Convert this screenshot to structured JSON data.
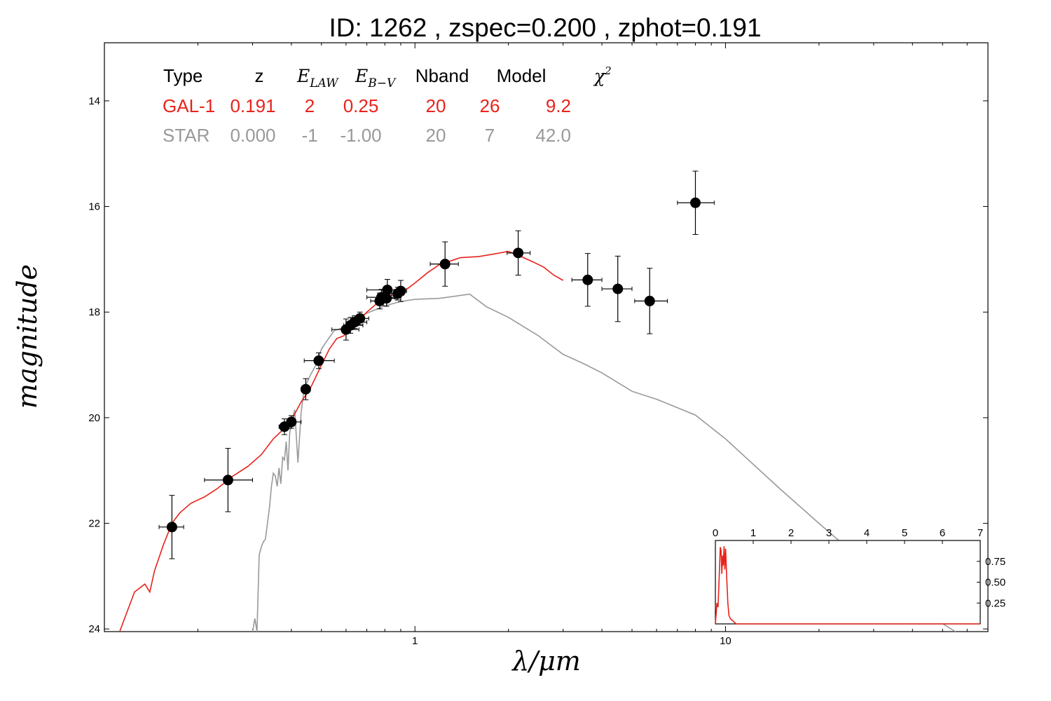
{
  "title": "ID:  1262  , zspec=0.200 , zphot=0.191",
  "xlabel": "λ/μm",
  "ylabel": "magnitude",
  "colors": {
    "gal": "#e8231b",
    "star": "#999999",
    "points": "#000000",
    "axes": "#000000"
  },
  "table": {
    "headers": [
      {
        "text": "Type",
        "math": false
      },
      {
        "text": "z",
        "math": false
      },
      {
        "text": "E",
        "sub": "LAW",
        "math": true
      },
      {
        "text": "E",
        "sub": "B−V",
        "math": true
      },
      {
        "text": "Nband",
        "math": false
      },
      {
        "text": "Model",
        "math": false
      },
      {
        "text": "χ",
        "sup": "2",
        "math": true
      }
    ],
    "rows": [
      {
        "type": "GAL-1",
        "z": "0.191",
        "elaw": "2",
        "ebv": "0.25",
        "nband": "20",
        "model": "26",
        "chi2": "9.2"
      },
      {
        "type": "STAR",
        "z": "0.000",
        "elaw": "-1",
        "ebv": "-1.00",
        "nband": "20",
        "model": "7",
        "chi2": "42.0"
      }
    ]
  },
  "chart_data": {
    "type": "scatter",
    "title": "ID:  1262  , zspec=0.200 , zphot=0.191",
    "xlabel": "λ/μm",
    "ylabel": "magnitude",
    "xscale": "log",
    "xlim": [
      0.1,
      70
    ],
    "ylim": [
      24.05,
      12.9
    ],
    "y_inverted": true,
    "xticks": [
      1,
      10
    ],
    "yticks": [
      14,
      16,
      18,
      20,
      22,
      24
    ],
    "grid": false,
    "series": [
      {
        "role": "observed photometry",
        "style": "points",
        "points": [
          {
            "x": 0.165,
            "y": 22.07,
            "xerr": [
              0.15,
              0.18
            ],
            "yerr": 0.6
          },
          {
            "x": 0.25,
            "y": 21.18,
            "xerr": [
              0.21,
              0.3
            ],
            "yerr": 0.6
          },
          {
            "x": 0.38,
            "y": 20.17,
            "xerr": [
              0.365,
              0.4
            ],
            "yerr": 0.15
          },
          {
            "x": 0.4,
            "y": 20.08,
            "xerr": [
              0.38,
              0.43
            ],
            "yerr": 0.12
          },
          {
            "x": 0.445,
            "y": 19.46,
            "xerr": [
              0.43,
              0.46
            ],
            "yerr": 0.2
          },
          {
            "x": 0.49,
            "y": 18.92,
            "xerr": [
              0.44,
              0.55
            ],
            "yerr": 0.15
          },
          {
            "x": 0.6,
            "y": 18.33,
            "xerr": [
              0.54,
              0.66
            ],
            "yerr": 0.2
          },
          {
            "x": 0.62,
            "y": 18.25,
            "xerr": [
              0.59,
              0.68
            ],
            "yerr": 0.15
          },
          {
            "x": 0.64,
            "y": 18.19,
            "xerr": [
              0.6,
              0.7
            ],
            "yerr": 0.12
          },
          {
            "x": 0.665,
            "y": 18.12,
            "xerr": [
              0.63,
              0.71
            ],
            "yerr": 0.12
          },
          {
            "x": 0.77,
            "y": 17.79,
            "xerr": [
              0.72,
              0.8
            ],
            "yerr": 0.15
          },
          {
            "x": 0.78,
            "y": 17.72,
            "xerr": [
              0.7,
              0.86
            ],
            "yerr": 0.15
          },
          {
            "x": 0.81,
            "y": 17.74,
            "xerr": [
              0.76,
              0.87
            ],
            "yerr": 0.15
          },
          {
            "x": 0.815,
            "y": 17.58,
            "xerr": [
              0.7,
              0.9
            ],
            "yerr": 0.2
          },
          {
            "x": 0.88,
            "y": 17.65,
            "xerr": [
              0.84,
              0.92
            ],
            "yerr": 0.12
          },
          {
            "x": 0.9,
            "y": 17.6,
            "xerr": [
              0.86,
              0.94
            ],
            "yerr": 0.2
          },
          {
            "x": 1.25,
            "y": 17.09,
            "xerr": [
              1.12,
              1.38
            ],
            "yerr": 0.42
          },
          {
            "x": 2.15,
            "y": 16.88,
            "xerr": [
              1.98,
              2.35
            ],
            "yerr": 0.42
          },
          {
            "x": 3.6,
            "y": 17.39,
            "xerr": [
              3.2,
              4.0
            ],
            "yerr": 0.5
          },
          {
            "x": 4.5,
            "y": 17.56,
            "xerr": [
              4.0,
              5.0
            ],
            "yerr": 0.62
          },
          {
            "x": 5.7,
            "y": 17.79,
            "xerr": [
              5.1,
              6.5
            ],
            "yerr": 0.62
          },
          {
            "x": 8.0,
            "y": 15.93,
            "xerr": [
              7.0,
              9.2
            ],
            "yerr": 0.6
          }
        ]
      },
      {
        "role": "GAL-1 model",
        "style": "line",
        "x": [
          0.112,
          0.125,
          0.135,
          0.14,
          0.145,
          0.155,
          0.165,
          0.175,
          0.19,
          0.21,
          0.23,
          0.26,
          0.29,
          0.32,
          0.35,
          0.38,
          0.4,
          0.43,
          0.46,
          0.5,
          0.53,
          0.56,
          0.59,
          0.62,
          0.65,
          0.7,
          0.75,
          0.8,
          0.85,
          0.9,
          0.95,
          1.0,
          1.1,
          1.2,
          1.4,
          1.6,
          1.8,
          2.0,
          2.2,
          2.4,
          2.6,
          2.8,
          3.0
        ],
        "y": [
          24.05,
          23.3,
          23.15,
          23.3,
          22.9,
          22.4,
          22.0,
          21.8,
          21.62,
          21.5,
          21.35,
          21.1,
          20.92,
          20.7,
          20.4,
          20.2,
          20.05,
          19.7,
          19.45,
          19.0,
          18.7,
          18.5,
          18.45,
          18.3,
          18.2,
          18.0,
          17.85,
          17.73,
          17.68,
          17.6,
          17.55,
          17.45,
          17.25,
          17.1,
          16.97,
          16.95,
          16.9,
          16.85,
          16.95,
          17.05,
          17.15,
          17.3,
          17.4
        ]
      },
      {
        "role": "STAR model",
        "style": "line",
        "x": [
          0.3,
          0.305,
          0.31,
          0.315,
          0.32,
          0.325,
          0.33,
          0.34,
          0.345,
          0.35,
          0.355,
          0.36,
          0.365,
          0.37,
          0.375,
          0.38,
          0.385,
          0.39,
          0.395,
          0.4,
          0.41,
          0.42,
          0.43,
          0.44,
          0.46,
          0.48,
          0.5,
          0.52,
          0.55,
          0.6,
          0.65,
          0.7,
          0.8,
          0.9,
          1.0,
          1.2,
          1.5,
          1.7,
          2.0,
          2.5,
          3.0,
          3.5,
          4.0,
          5.0,
          6.0,
          8.0,
          10.0,
          15.0,
          20.0,
          30.0,
          40.0,
          55.0
        ],
        "y": [
          24.05,
          23.8,
          24.05,
          22.6,
          22.45,
          22.35,
          22.3,
          21.7,
          21.3,
          21.05,
          21.1,
          21.3,
          20.95,
          21.25,
          20.75,
          20.8,
          20.45,
          21.0,
          20.3,
          20.1,
          19.85,
          20.85,
          19.9,
          19.45,
          19.2,
          19.0,
          18.7,
          18.55,
          18.35,
          18.28,
          18.1,
          18.02,
          17.88,
          17.8,
          17.76,
          17.74,
          17.66,
          17.9,
          18.1,
          18.45,
          18.8,
          18.98,
          19.15,
          19.5,
          19.65,
          19.95,
          20.4,
          21.35,
          22.0,
          22.9,
          23.55,
          24.05
        ]
      }
    ],
    "inset": {
      "type": "line",
      "xlim": [
        0,
        7
      ],
      "ylim": [
        0,
        1.0
      ],
      "xticks": [
        0,
        1,
        2,
        3,
        4,
        5,
        6,
        7
      ],
      "yticks": [
        0.25,
        0.5,
        0.75
      ],
      "ytick_labels": [
        "0.25",
        "0.50",
        "0.75"
      ],
      "x": [
        0,
        0.02,
        0.04,
        0.07,
        0.1,
        0.13,
        0.15,
        0.17,
        0.19,
        0.21,
        0.23,
        0.25,
        0.27,
        0.3,
        0.33,
        0.36,
        0.4,
        0.45,
        0.5,
        0.55,
        1.0,
        7.0
      ],
      "y": [
        0,
        0.12,
        0.25,
        0.2,
        0.55,
        0.92,
        0.88,
        0.6,
        0.82,
        0.7,
        0.93,
        0.65,
        0.9,
        0.55,
        0.25,
        0.1,
        0.06,
        0.04,
        0.02,
        0.0,
        0.0,
        0.0
      ]
    }
  }
}
